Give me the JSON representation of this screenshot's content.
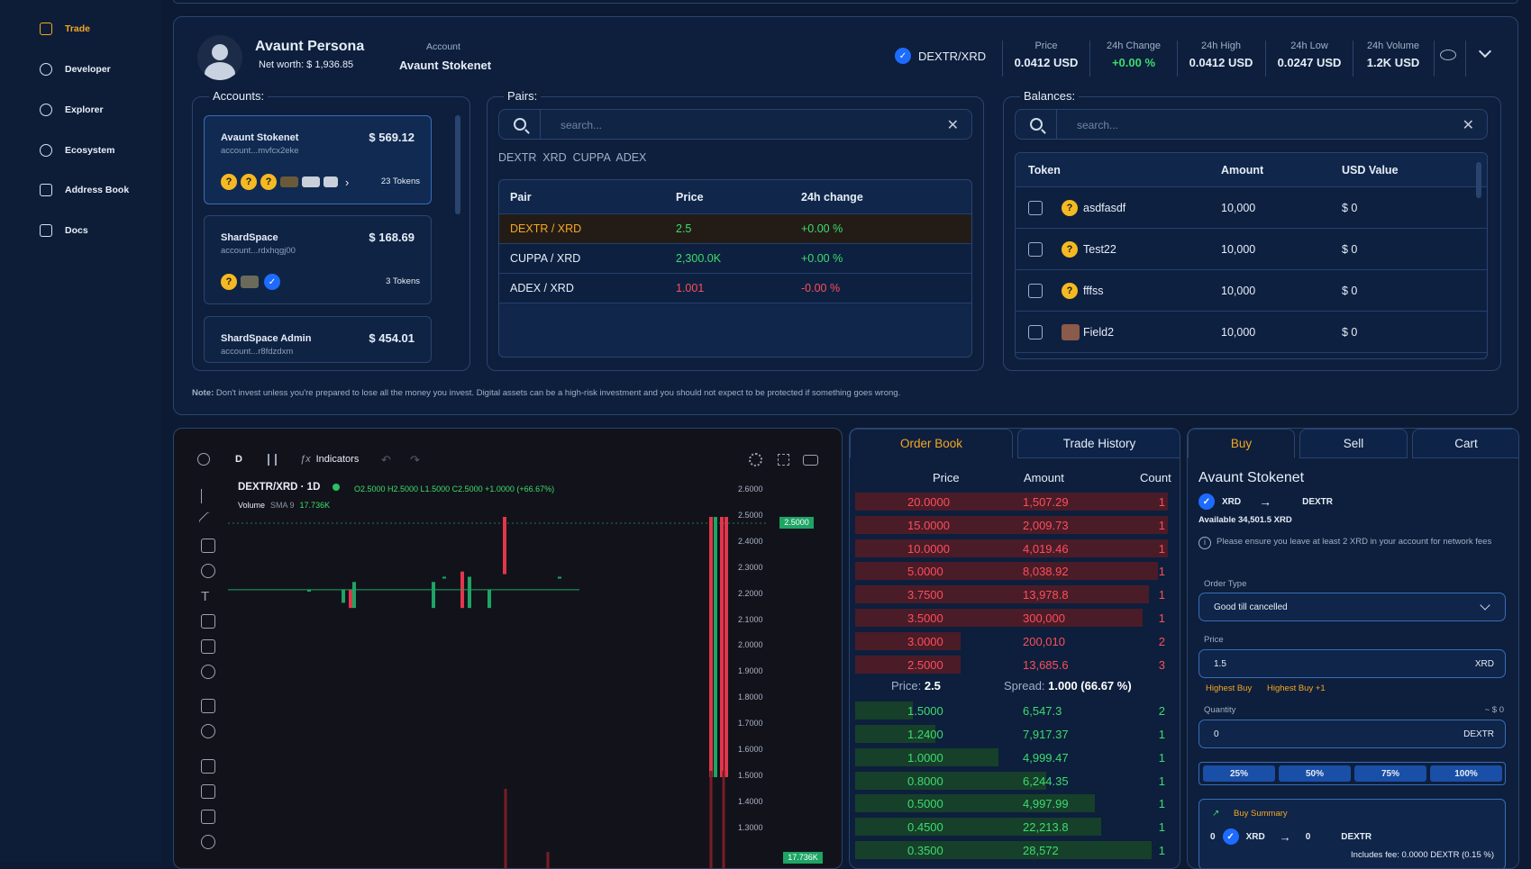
{
  "sidebar": {
    "items": [
      {
        "label": "Trade",
        "icon": "wallet-icon"
      },
      {
        "label": "Developer",
        "icon": "gear-icon"
      },
      {
        "label": "Explorer",
        "icon": "compass-icon"
      },
      {
        "label": "Ecosystem",
        "icon": "globe-icon"
      },
      {
        "label": "Address Book",
        "icon": "contacts-icon"
      },
      {
        "label": "Docs",
        "icon": "external-link-icon"
      }
    ]
  },
  "header": {
    "persona": "Avaunt Persona",
    "networth": "Net worth: $ 1,936.85",
    "account_label": "Account",
    "account_value": "Avaunt Stokenet",
    "pair": "DEXTR/XRD",
    "stats": [
      {
        "label": "Price",
        "value": "0.0412 USD"
      },
      {
        "label": "24h Change",
        "value": "+0.00 %"
      },
      {
        "label": "24h High",
        "value": "0.0412 USD"
      },
      {
        "label": "24h Low",
        "value": "0.0247 USD"
      },
      {
        "label": "24h Volume",
        "value": "1.2K USD"
      }
    ]
  },
  "accounts": {
    "title": "Accounts:",
    "items": [
      {
        "name": "Avaunt Stokenet",
        "amount": "$ 569.12",
        "addr": "account...mvfcx2eke",
        "tokens": "23 Tokens"
      },
      {
        "name": "ShardSpace",
        "amount": "$ 168.69",
        "addr": "account...rdxhqgj00",
        "tokens": "3 Tokens"
      },
      {
        "name": "ShardSpace Admin",
        "amount": "$ 454.01",
        "addr": "account...r8fdzdxm"
      }
    ]
  },
  "pairs": {
    "title": "Pairs:",
    "placeholder": "search...",
    "filters": "DEXTR  XRD  CUPPA  ADEX",
    "headers": [
      "Pair",
      "Price",
      "24h change"
    ],
    "rows": [
      {
        "pair": "DEXTR / XRD",
        "price": "2.5",
        "change": "+0.00 %"
      },
      {
        "pair": "CUPPA / XRD",
        "price": "2,300.0K",
        "change": "+0.00 %"
      },
      {
        "pair": "ADEX / XRD",
        "price": "1.001",
        "change": "-0.00 %"
      }
    ]
  },
  "balances": {
    "title": "Balances:",
    "placeholder": "search...",
    "headers": [
      "Token",
      "Amount",
      "USD Value"
    ],
    "rows": [
      {
        "token": "asdfasdf",
        "amount": "10,000",
        "usd": "$ 0"
      },
      {
        "token": "Test22",
        "amount": "10,000",
        "usd": "$ 0"
      },
      {
        "token": "fffss",
        "amount": "10,000",
        "usd": "$ 0"
      },
      {
        "token": "Field2",
        "amount": "10,000",
        "usd": "$ 0"
      }
    ]
  },
  "note": {
    "bold": "Note:",
    "text": " Don't invest unless you're prepared to lose all the money you invest. Digital assets can be a high-risk investment and you should not expect to be protected if something goes wrong."
  },
  "chart": {
    "interval": "D",
    "indicators": "Indicators",
    "title": "DEXTR/XRD · 1D",
    "ohlc": "O2.5000 H2.5000 L1.5000 C2.5000 +1.0000 (+66.67%)",
    "volume": "Volume",
    "sma": "SMA 9",
    "sma_val": "17.736K",
    "price_ticks": [
      "2.6000",
      "2.5000",
      "2.4000",
      "2.3000",
      "2.2000",
      "2.1000",
      "2.0000",
      "1.9000",
      "1.8000",
      "1.7000",
      "1.6000",
      "1.5000",
      "1.4000",
      "1.3000"
    ],
    "vol_tag": "17.736K"
  },
  "orderbook": {
    "tabs": [
      "Order Book",
      "Trade History"
    ],
    "headers": [
      "Price",
      "Amount",
      "Count"
    ],
    "asks": [
      {
        "price": "20.0000",
        "amount": "1,507.29",
        "count": "1",
        "depth": 0.98
      },
      {
        "price": "15.0000",
        "amount": "2,009.73",
        "count": "1",
        "depth": 0.98
      },
      {
        "price": "10.0000",
        "amount": "4,019.46",
        "count": "1",
        "depth": 0.98
      },
      {
        "price": "5.0000",
        "amount": "8,038.92",
        "count": "1",
        "depth": 0.95
      },
      {
        "price": "3.7500",
        "amount": "13,978.8",
        "count": "1",
        "depth": 0.92
      },
      {
        "price": "3.5000",
        "amount": "300,000",
        "count": "1",
        "depth": 0.9
      },
      {
        "price": "3.0000",
        "amount": "200,010",
        "count": "2",
        "depth": 0.33
      },
      {
        "price": "2.5000",
        "amount": "13,685.6",
        "count": "3",
        "depth": 0.33
      }
    ],
    "mid_price_label": "Price:",
    "mid_price": "2.5",
    "spread_label": "Spread:",
    "spread": "1.000 (66.67 %)",
    "bids": [
      {
        "price": "1.5000",
        "amount": "6,547.3",
        "count": "2",
        "depth": 0.18
      },
      {
        "price": "1.2400",
        "amount": "7,917.37",
        "count": "1",
        "depth": 0.25
      },
      {
        "price": "1.0000",
        "amount": "4,999.47",
        "count": "1",
        "depth": 0.45
      },
      {
        "price": "0.8000",
        "amount": "6,244.35",
        "count": "1",
        "depth": 0.6
      },
      {
        "price": "0.5000",
        "amount": "4,997.99",
        "count": "1",
        "depth": 0.75
      },
      {
        "price": "0.4500",
        "amount": "22,213.8",
        "count": "1",
        "depth": 0.77
      },
      {
        "price": "0.3500",
        "amount": "28,572",
        "count": "1",
        "depth": 0.93
      }
    ]
  },
  "trade": {
    "tabs": [
      "Buy",
      "Sell",
      "Cart"
    ],
    "account": "Avaunt Stokenet",
    "from": "XRD",
    "to": "DEXTR",
    "available": "Available 34,501.5 XRD",
    "fee_note": "Please ensure you leave at least 2 XRD in your account for network fees",
    "order_type_label": "Order Type",
    "order_type": "Good till cancelled",
    "price_label": "Price",
    "price": "1.5",
    "price_unit": "XRD",
    "highest_buy": "Highest Buy",
    "highest_buy_plus": "Highest Buy +1",
    "quantity_label": "Quantity",
    "quantity_usd": "~ $ 0",
    "quantity": "0",
    "quantity_unit": "DEXTR",
    "pcts": [
      "25%",
      "50%",
      "75%",
      "100%"
    ],
    "summary_label": "Buy Summary",
    "sum_from_amt": "0",
    "sum_from": "XRD",
    "sum_to_amt": "0",
    "sum_to": "DEXTR",
    "fee": "Includes fee: 0.0000 DEXTR (0.15 %)"
  }
}
